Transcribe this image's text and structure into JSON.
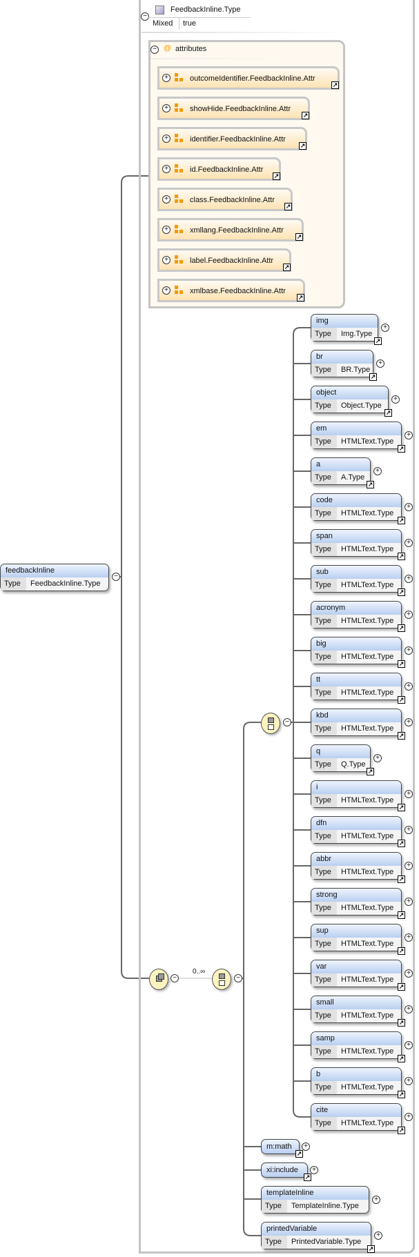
{
  "complex_type": {
    "icon": "complex-type-icon",
    "name": "FeedbackInline.Type",
    "mixed_label": "Mixed",
    "mixed_value": "true"
  },
  "attributes": {
    "label": "attributes",
    "items": [
      "outcomeIdentifier.FeedbackInline.Attr",
      "showHide.FeedbackInline.Attr",
      "identifier.FeedbackInline.Attr",
      "id.FeedbackInline.Attr",
      "class.FeedbackInline.Attr",
      "xmllang.FeedbackInline.Attr",
      "label.FeedbackInline.Attr",
      "xmlbase.FeedbackInline.Attr"
    ]
  },
  "root_element": {
    "name": "feedbackInline",
    "type_label": "Type",
    "type": "FeedbackInline.Type"
  },
  "sequence": {
    "occurrence": "0..∞"
  },
  "choice_elements": [
    {
      "name": "img",
      "type": "Img.Type"
    },
    {
      "name": "br",
      "type": "BR.Type"
    },
    {
      "name": "object",
      "type": "Object.Type"
    },
    {
      "name": "em",
      "type": "HTMLText.Type"
    },
    {
      "name": "a",
      "type": "A.Type"
    },
    {
      "name": "code",
      "type": "HTMLText.Type"
    },
    {
      "name": "span",
      "type": "HTMLText.Type"
    },
    {
      "name": "sub",
      "type": "HTMLText.Type"
    },
    {
      "name": "acronym",
      "type": "HTMLText.Type"
    },
    {
      "name": "big",
      "type": "HTMLText.Type"
    },
    {
      "name": "tt",
      "type": "HTMLText.Type"
    },
    {
      "name": "kbd",
      "type": "HTMLText.Type"
    },
    {
      "name": "q",
      "type": "Q.Type"
    },
    {
      "name": "i",
      "type": "HTMLText.Type"
    },
    {
      "name": "dfn",
      "type": "HTMLText.Type"
    },
    {
      "name": "abbr",
      "type": "HTMLText.Type"
    },
    {
      "name": "strong",
      "type": "HTMLText.Type"
    },
    {
      "name": "sup",
      "type": "HTMLText.Type"
    },
    {
      "name": "var",
      "type": "HTMLText.Type"
    },
    {
      "name": "small",
      "type": "HTMLText.Type"
    },
    {
      "name": "samp",
      "type": "HTMLText.Type"
    },
    {
      "name": "b",
      "type": "HTMLText.Type"
    },
    {
      "name": "cite",
      "type": "HTMLText.Type"
    }
  ],
  "type_label": "Type",
  "ref_elements": [
    {
      "name": "m:math"
    },
    {
      "name": "xi:include"
    }
  ],
  "tail_elements": [
    {
      "name": "templateInline",
      "type": "TemplateInline.Type",
      "link": false
    },
    {
      "name": "printedVariable",
      "type": "PrintedVariable.Type",
      "link": true
    }
  ],
  "colors": {
    "element_header": "#b9cff1",
    "attribute_fill": "#fde3b3",
    "attribute_icon": "#f39a00",
    "compositor_fill": "#fbf3c0"
  }
}
